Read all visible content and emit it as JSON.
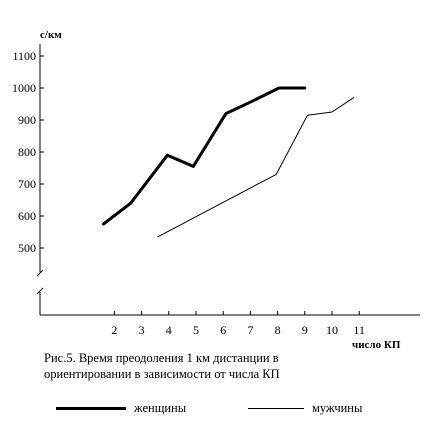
{
  "chart_data": {
    "type": "line",
    "ylabel": "с/км",
    "xlabel": "число КП",
    "y_ticks": [
      500,
      600,
      700,
      800,
      900,
      1000,
      1100
    ],
    "x_ticks": [
      2,
      3,
      4,
      5,
      6,
      7,
      8,
      9,
      10,
      11
    ],
    "y_axis_break": true,
    "grid": false,
    "legend_position": "bottom",
    "series": [
      {
        "name": "женщины",
        "color": "#000000",
        "x": [
          1.6,
          2.6,
          3.95,
          4.9,
          6.1,
          7.1,
          8.05,
          9.0
        ],
        "y": [
          575,
          640,
          790,
          755,
          920,
          960,
          1000,
          1000
        ]
      },
      {
        "name": "мужчины",
        "color": "#000000",
        "x": [
          3.6,
          7.95,
          9.1,
          10.0,
          10.8
        ],
        "y": [
          535,
          730,
          915,
          925,
          970
        ]
      }
    ]
  },
  "caption": {
    "line1": "Рис.5. Время преодоления 1 км дистанции в",
    "line2": "ориентировании в зависимости от числа КП"
  }
}
